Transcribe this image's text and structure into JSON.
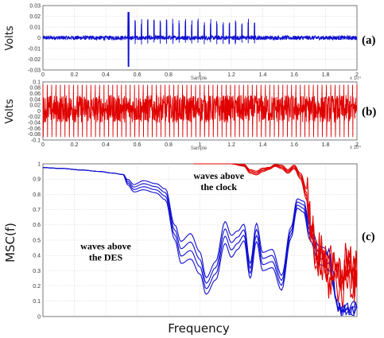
{
  "chart_data": [
    {
      "panel": "(a)",
      "type": "line",
      "ylabel": "Volts",
      "xlabel": "Sample",
      "x_multiplier_label": "x 10⁴",
      "x_ticks": [
        "0",
        "0.2",
        "0.4",
        "0.6",
        "0.8",
        "1",
        "1.2",
        "1.4",
        "1.6",
        "1.8",
        "2"
      ],
      "y_ticks": [
        "0.03",
        "0.02",
        "0.01",
        "0",
        "-0.01",
        "-0.02",
        "-0.03"
      ],
      "xlim": [
        0,
        2
      ],
      "ylim": [
        -0.03,
        0.03
      ],
      "grid": true,
      "color": "#1010d0",
      "signal": {
        "baseline_noise": 0.002,
        "burst_start": 0.545,
        "burst_first_spike": [
          0.024,
          -0.027
        ],
        "burst_period": 0.04,
        "burst_end": 1.35,
        "burst_amplitude": [
          0.012,
          0.018
        ]
      }
    },
    {
      "panel": "(b)",
      "type": "line",
      "ylabel": "Volts",
      "xlabel": "Sample",
      "x_multiplier_label": "x 10⁴",
      "x_ticks": [
        "0",
        "0.2",
        "0.4",
        "0.6",
        "0.8",
        "1",
        "1.2",
        "1.4",
        "1.6",
        "1.8",
        "2"
      ],
      "y_ticks": [
        "0.1",
        "0.08",
        "0.06",
        "0.04",
        "0.02",
        "0",
        "-0.02",
        "-0.04",
        "-0.06",
        "-0.08",
        "-0.1"
      ],
      "xlim": [
        0,
        2
      ],
      "ylim": [
        -0.1,
        0.1
      ],
      "grid": true,
      "color": "#e00000",
      "signal": {
        "cycles": 72,
        "peak_high": 0.09,
        "peak_low": -0.09,
        "body_range": [
          -0.04,
          0.055
        ]
      }
    },
    {
      "panel": "(c)",
      "type": "line",
      "ylabel": "MSC(f)",
      "xlabel": "Frequency",
      "y_ticks": [
        "1",
        "0.9",
        "0.8",
        "0.7",
        "0.6",
        "0.5",
        "0.4",
        "0.3",
        "0.2",
        "0.1",
        "0"
      ],
      "ylim": [
        0,
        1
      ],
      "xlim": [
        0,
        1
      ],
      "grid": true,
      "annotations": [
        {
          "lines": [
            "waves above",
            "the clock"
          ],
          "x": 0.56,
          "y": 0.9
        },
        {
          "lines": [
            "waves above",
            "the DES"
          ],
          "x": 0.2,
          "y": 0.44
        }
      ],
      "series": [
        {
          "group": "DES",
          "color": "#1010d0",
          "count": 4,
          "x": [
            0,
            0.06,
            0.12,
            0.18,
            0.22,
            0.255,
            0.27,
            0.29,
            0.32,
            0.36,
            0.39,
            0.42,
            0.44,
            0.47,
            0.5,
            0.52,
            0.55,
            0.58,
            0.6,
            0.62,
            0.64,
            0.66,
            0.68,
            0.7,
            0.73,
            0.76,
            0.79,
            0.81,
            0.83,
            0.85,
            0.88,
            0.91,
            0.94,
            0.97,
            1
          ],
          "y": [
            0.975,
            0.97,
            0.96,
            0.95,
            0.94,
            0.93,
            0.88,
            0.84,
            0.86,
            0.84,
            0.8,
            0.55,
            0.42,
            0.46,
            0.35,
            0.2,
            0.3,
            0.55,
            0.46,
            0.5,
            0.55,
            0.3,
            0.55,
            0.36,
            0.38,
            0.22,
            0.55,
            0.74,
            0.72,
            0.55,
            0.4,
            0.38,
            0.06,
            0.05,
            0.06
          ],
          "variation": [
            0.0,
            0.0,
            0.0,
            0.0,
            0.0,
            0.0,
            0.03,
            0.04,
            0.05,
            0.05,
            0.06,
            0.08,
            0.12,
            0.14,
            0.12,
            0.09,
            0.1,
            0.12,
            0.12,
            0.1,
            0.09,
            0.08,
            0.1,
            0.1,
            0.1,
            0.08,
            0.06,
            0.05,
            0.06,
            0.08,
            0.1,
            0.1,
            0.02,
            0.02,
            0.02
          ]
        },
        {
          "group": "clock",
          "color": "#e00000",
          "count": 4,
          "x": [
            0.48,
            0.55,
            0.6,
            0.64,
            0.66,
            0.68,
            0.7,
            0.72,
            0.74,
            0.76,
            0.78,
            0.8,
            0.82,
            0.84,
            0.855,
            0.87,
            0.89,
            0.91,
            0.93,
            0.95,
            0.97,
            0.99,
            1
          ],
          "y": [
            1.0,
            1.0,
            1.0,
            0.99,
            0.95,
            0.94,
            0.96,
            0.97,
            0.99,
            0.98,
            0.95,
            0.98,
            0.92,
            0.8,
            0.55,
            0.4,
            0.38,
            0.28,
            0.3,
            0.22,
            0.33,
            0.25,
            0.28
          ],
          "variation": [
            0,
            0,
            0,
            0.01,
            0.02,
            0.02,
            0.02,
            0.01,
            0.01,
            0.02,
            0.02,
            0.02,
            0.03,
            0.06,
            0.1,
            0.12,
            0.12,
            0.12,
            0.12,
            0.12,
            0.12,
            0.1,
            0.1
          ]
        }
      ]
    }
  ],
  "labels": {
    "panel_a": "(a)",
    "panel_b": "(b)",
    "panel_c": "(c)"
  }
}
